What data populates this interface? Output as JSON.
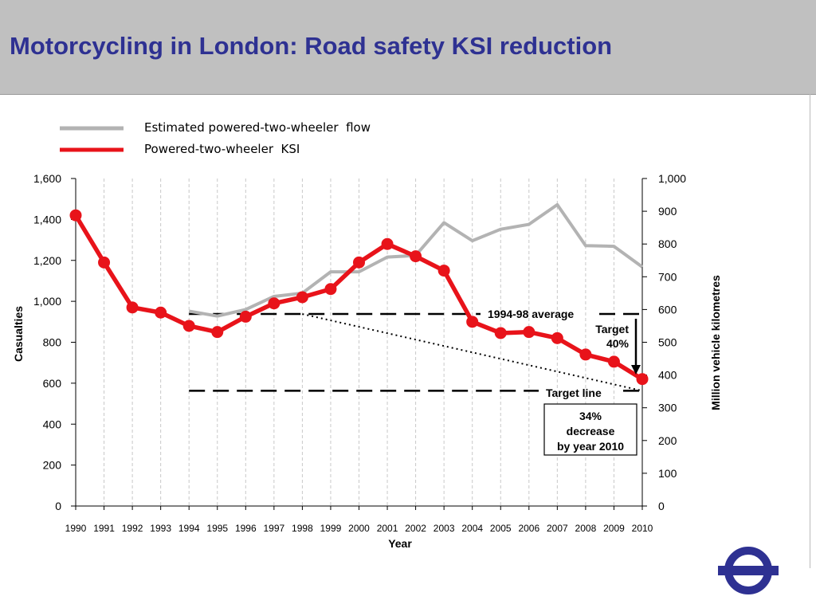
{
  "slide": {
    "title": "Motorcycling in London: Road safety KSI reduction"
  },
  "logo": {
    "icon": "roundel-logo-icon",
    "color": "#2e3192"
  },
  "chart_data": {
    "type": "line",
    "x": [
      1990,
      1991,
      1992,
      1993,
      1994,
      1995,
      1996,
      1997,
      1998,
      1999,
      2000,
      2001,
      2002,
      2003,
      2004,
      2005,
      2006,
      2007,
      2008,
      2009,
      2010
    ],
    "x_tick_labels": [
      "1990",
      "1991",
      "1992",
      "1993",
      "1994",
      "1995",
      "1996",
      "1997",
      "1998",
      "1999",
      "2000",
      "2001",
      "2002",
      "2003",
      "2004",
      "2005",
      "2006",
      "2007",
      "2008",
      "2009",
      "2010"
    ],
    "xlabel": "Year",
    "ylabel": "Casualties",
    "ylim": [
      0,
      1600
    ],
    "y_ticks": [
      0,
      200,
      400,
      600,
      800,
      1000,
      1200,
      1400,
      1600
    ],
    "y_tick_labels": [
      "0",
      "200",
      "400",
      "600",
      "800",
      "1,000",
      "1,200",
      "1,400",
      "1,600"
    ],
    "y2label": "Million vehicle kilometres",
    "y2lim": [
      0,
      1000
    ],
    "y2_ticks": [
      0,
      100,
      200,
      300,
      400,
      500,
      600,
      700,
      800,
      900,
      1000
    ],
    "y2_tick_labels": [
      "0",
      "100",
      "200",
      "300",
      "400",
      "500",
      "600",
      "700",
      "800",
      "900",
      "1,000"
    ],
    "grid": "vertical dashed",
    "legend_position": "top",
    "series": [
      {
        "name": "Estimated powered-two-wheeler  flow",
        "axis": "right",
        "color": "#b3b3b3",
        "x": [
          1994,
          1995,
          1996,
          1997,
          1998,
          1999,
          2000,
          2001,
          2002,
          2003,
          2004,
          2005,
          2006,
          2007,
          2008,
          2009,
          2010
        ],
        "values": [
          595,
          580,
          600,
          640,
          650,
          715,
          715,
          760,
          765,
          865,
          810,
          845,
          860,
          920,
          795,
          793,
          730
        ]
      },
      {
        "name": "Powered-two-wheeler  KSI",
        "axis": "left",
        "color": "#e8131a",
        "x": [
          1990,
          1991,
          1992,
          1993,
          1994,
          1995,
          1996,
          1997,
          1998,
          1999,
          2000,
          2001,
          2002,
          2003,
          2004,
          2005,
          2006,
          2007,
          2008,
          2009,
          2010
        ],
        "values": [
          1420,
          1190,
          970,
          945,
          880,
          850,
          925,
          990,
          1020,
          1060,
          1190,
          1280,
          1220,
          1150,
          900,
          845,
          850,
          820,
          740,
          705,
          620
        ]
      }
    ],
    "reference_lines": {
      "average": {
        "label": "1994-98 average",
        "value": 938,
        "from": 1994,
        "to": 2010
      },
      "target_line": {
        "label": "Target line",
        "value": 563,
        "from": 1994,
        "to": 2010
      },
      "trend": {
        "from_x": 1998,
        "from_value": 938,
        "to_x": 2010,
        "to_value": 563
      }
    },
    "annotations": {
      "target_label_1": "Target",
      "target_label_2": "40%",
      "box_line_1": "34%",
      "box_line_2": "decrease",
      "box_line_3": "by year 2010"
    }
  }
}
